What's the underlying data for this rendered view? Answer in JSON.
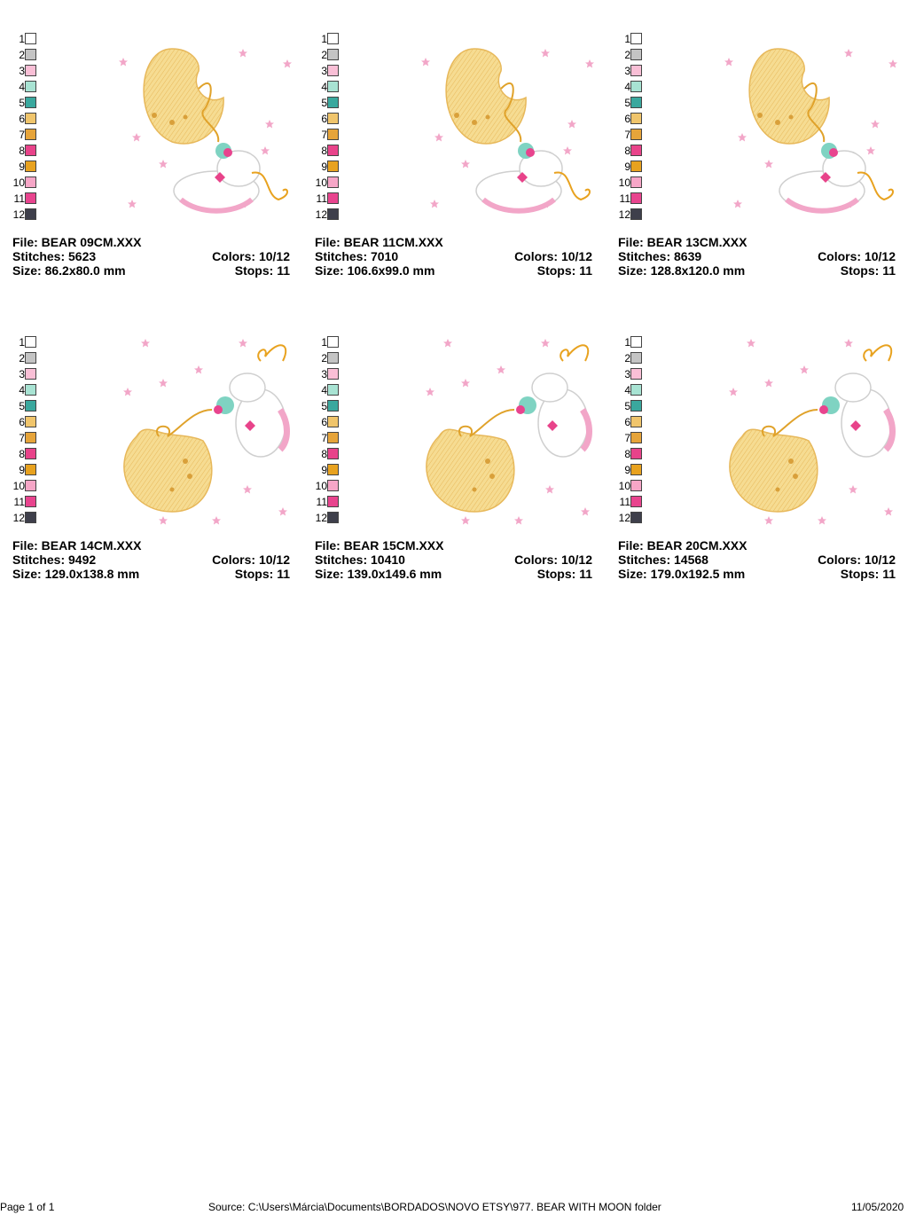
{
  "palette_colors": [
    "#ffffff",
    "#c4c4c4",
    "#f9bfd6",
    "#a8e3d3",
    "#3aa89e",
    "#f0c56c",
    "#e6a43a",
    "#e8438a",
    "#e8a21f",
    "#f6a6c7",
    "#e8448e",
    "#3e3f4b"
  ],
  "palette_numbers": [
    "1",
    "2",
    "3",
    "4",
    "5",
    "6",
    "7",
    "8",
    "9",
    "10",
    "11",
    "12"
  ],
  "designs": [
    {
      "file": "File: BEAR 09CM.XXX",
      "stitches": "Stitches: 5623",
      "size": "Size: 86.2x80.0 mm",
      "colors": "Colors: 10/12",
      "stops": "Stops: 11"
    },
    {
      "file": "File: BEAR 11CM.XXX",
      "stitches": "Stitches: 7010",
      "size": "Size: 106.6x99.0 mm",
      "colors": "Colors: 10/12",
      "stops": "Stops: 11"
    },
    {
      "file": "File: BEAR 13CM.XXX",
      "stitches": "Stitches: 8639",
      "size": "Size: 128.8x120.0 mm",
      "colors": "Colors: 10/12",
      "stops": "Stops: 11"
    },
    {
      "file": "File: BEAR 14CM.XXX",
      "stitches": "Stitches: 9492",
      "size": "Size: 129.0x138.8 mm",
      "colors": "Colors: 10/12",
      "stops": "Stops: 11"
    },
    {
      "file": "File: BEAR 15CM.XXX",
      "stitches": "Stitches: 10410",
      "size": "Size: 139.0x149.6 mm",
      "colors": "Colors: 10/12",
      "stops": "Stops: 11"
    },
    {
      "file": "File: BEAR 20CM.XXX",
      "stitches": "Stitches: 14568",
      "size": "Size: 179.0x192.5 mm",
      "colors": "Colors: 10/12",
      "stops": "Stops: 11"
    }
  ],
  "footer": {
    "page": "Page 1 of 1",
    "source": "Source: C:\\Users\\Márcia\\Documents\\BORDADOS\\NOVO ETSY\\977. BEAR WITH MOON folder",
    "date": "11/05/2020"
  }
}
